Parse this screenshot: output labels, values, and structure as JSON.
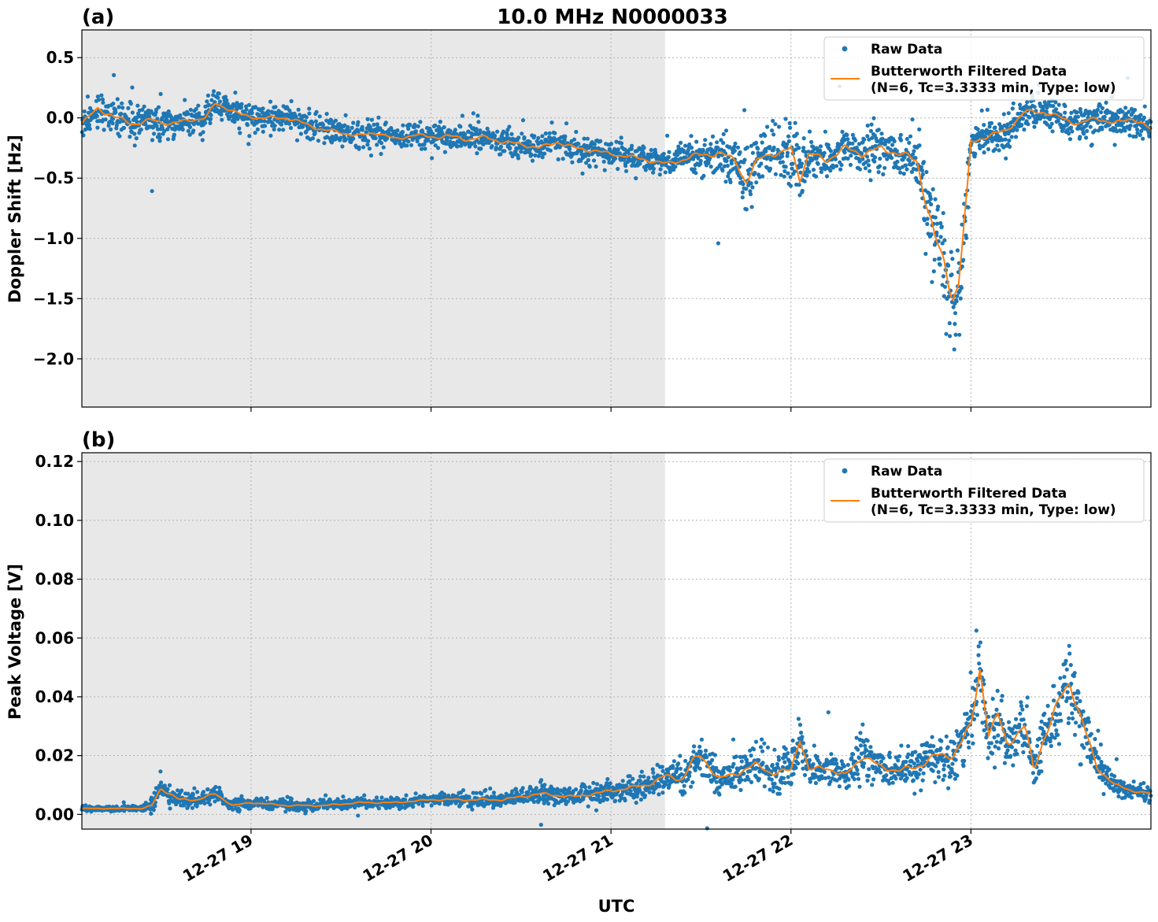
{
  "figure": {
    "title": "10.0 MHz N0000033",
    "xlabel": "UTC"
  },
  "colors": {
    "raw": "#1f77b4",
    "filtered": "#ff7f0e",
    "night_shade": "#e8e8e8",
    "grid": "#b0b0b0"
  },
  "chart_data": [
    {
      "type": "scatter",
      "panel_label": "(a)",
      "ylabel": "Doppler Shift [Hz]",
      "x_range_hours": [
        18.06,
        24.0
      ],
      "ylim": [
        -2.4,
        0.73
      ],
      "yticks": [
        0.5,
        0.0,
        -0.5,
        -1.0,
        -1.5,
        -2.0
      ],
      "ytick_labels": [
        "0.5",
        "0.0",
        "−0.5",
        "−1.0",
        "−1.5",
        "−2.0"
      ],
      "xticks_hours": [
        19,
        20,
        21,
        22,
        23
      ],
      "xtick_labels": [
        "12-27 19",
        "12-27 20",
        "12-27 21",
        "12-27 22",
        "12-27 23"
      ],
      "shaded_region_hours": [
        18.06,
        21.3
      ],
      "grid": true,
      "legend_position": "top-right",
      "legend": [
        "Raw Data",
        "Butterworth Filtered Data",
        "(N=6, Tc=3.3333 min, Type: low)"
      ],
      "series": [
        {
          "name": "Butterworth Filtered Data",
          "kind": "line",
          "x_hours": [
            18.06,
            18.15,
            18.25,
            18.35,
            18.45,
            18.55,
            18.65,
            18.75,
            18.8,
            18.87,
            18.95,
            19.05,
            19.2,
            19.3,
            19.4,
            19.5,
            19.6,
            19.7,
            19.8,
            19.9,
            20.0,
            20.1,
            20.2,
            20.3,
            20.4,
            20.5,
            20.6,
            20.7,
            20.8,
            20.9,
            21.0,
            21.1,
            21.2,
            21.3,
            21.4,
            21.5,
            21.6,
            21.7,
            21.75,
            21.8,
            21.85,
            21.9,
            21.95,
            22.0,
            22.05,
            22.1,
            22.2,
            22.3,
            22.4,
            22.5,
            22.6,
            22.7,
            22.75,
            22.8,
            22.85,
            22.9,
            22.93,
            22.98,
            23.0,
            23.1,
            23.2,
            23.3,
            23.4,
            23.5,
            23.6,
            23.7,
            23.8,
            23.9,
            24.0
          ],
          "y": [
            -0.05,
            0.08,
            0.0,
            -0.05,
            -0.02,
            -0.05,
            -0.02,
            0.0,
            0.12,
            0.08,
            0.02,
            0.0,
            0.0,
            -0.05,
            -0.1,
            -0.12,
            -0.15,
            -0.12,
            -0.18,
            -0.14,
            -0.16,
            -0.15,
            -0.18,
            -0.16,
            -0.2,
            -0.22,
            -0.25,
            -0.2,
            -0.25,
            -0.27,
            -0.3,
            -0.32,
            -0.35,
            -0.38,
            -0.35,
            -0.3,
            -0.3,
            -0.35,
            -0.55,
            -0.4,
            -0.3,
            -0.3,
            -0.3,
            -0.25,
            -0.5,
            -0.3,
            -0.35,
            -0.25,
            -0.3,
            -0.25,
            -0.3,
            -0.35,
            -0.7,
            -1.0,
            -1.2,
            -1.48,
            -1.4,
            -0.6,
            -0.2,
            -0.15,
            -0.1,
            0.05,
            0.05,
            0.0,
            -0.05,
            0.0,
            -0.05,
            0.0,
            -0.1
          ]
        },
        {
          "name": "Raw Data",
          "kind": "scatter",
          "spread": [
            0.15,
            0.15,
            0.15,
            0.15,
            0.15,
            0.12,
            0.12,
            0.12,
            0.12,
            0.12,
            0.12,
            0.12,
            0.12,
            0.12,
            0.12,
            0.12,
            0.12,
            0.12,
            0.12,
            0.12,
            0.12,
            0.12,
            0.12,
            0.12,
            0.12,
            0.12,
            0.12,
            0.12,
            0.12,
            0.12,
            0.12,
            0.12,
            0.12,
            0.12,
            0.12,
            0.2,
            0.2,
            0.3,
            0.35,
            0.3,
            0.2,
            0.2,
            0.2,
            0.3,
            0.25,
            0.2,
            0.2,
            0.2,
            0.2,
            0.2,
            0.2,
            0.3,
            0.35,
            0.4,
            0.45,
            0.5,
            0.4,
            0.3,
            0.15,
            0.15,
            0.15,
            0.15,
            0.15,
            0.15,
            0.15,
            0.15,
            0.15,
            0.15,
            0.15
          ]
        }
      ]
    },
    {
      "type": "scatter",
      "panel_label": "(b)",
      "ylabel": "Peak Voltage [V]",
      "x_range_hours": [
        18.06,
        24.0
      ],
      "ylim": [
        -0.005,
        0.123
      ],
      "yticks": [
        0.0,
        0.02,
        0.04,
        0.06,
        0.08,
        0.1,
        0.12
      ],
      "ytick_labels": [
        "0.00",
        "0.02",
        "0.04",
        "0.06",
        "0.08",
        "0.10",
        "0.12"
      ],
      "xticks_hours": [
        19,
        20,
        21,
        22,
        23
      ],
      "xtick_labels": [
        "12-27 19",
        "12-27 20",
        "12-27 21",
        "12-27 22",
        "12-27 23"
      ],
      "shaded_region_hours": [
        18.06,
        21.3
      ],
      "grid": true,
      "legend_position": "top-right",
      "legend": [
        "Raw Data",
        "Butterworth Filtered Data",
        "(N=6, Tc=3.3333 min, Type: low)"
      ],
      "series": [
        {
          "name": "Butterworth Filtered Data",
          "kind": "line",
          "x_hours": [
            18.06,
            18.2,
            18.3,
            18.4,
            18.45,
            18.5,
            18.6,
            18.7,
            18.8,
            18.9,
            19.0,
            19.2,
            19.4,
            19.6,
            19.8,
            20.0,
            20.2,
            20.4,
            20.6,
            20.8,
            21.0,
            21.2,
            21.3,
            21.4,
            21.45,
            21.5,
            21.6,
            21.7,
            21.8,
            21.9,
            22.0,
            22.05,
            22.1,
            22.2,
            22.3,
            22.4,
            22.5,
            22.6,
            22.7,
            22.8,
            22.9,
            23.0,
            23.05,
            23.1,
            23.15,
            23.2,
            23.3,
            23.35,
            23.4,
            23.5,
            23.55,
            23.6,
            23.7,
            23.8,
            23.9,
            24.0
          ],
          "y": [
            0.002,
            0.002,
            0.002,
            0.002,
            0.003,
            0.009,
            0.005,
            0.005,
            0.007,
            0.003,
            0.004,
            0.003,
            0.003,
            0.004,
            0.004,
            0.005,
            0.005,
            0.005,
            0.007,
            0.006,
            0.008,
            0.01,
            0.013,
            0.012,
            0.018,
            0.02,
            0.012,
            0.014,
            0.017,
            0.014,
            0.015,
            0.026,
            0.015,
            0.016,
            0.013,
            0.02,
            0.016,
            0.015,
            0.016,
            0.02,
            0.02,
            0.03,
            0.05,
            0.027,
            0.034,
            0.024,
            0.03,
            0.015,
            0.025,
            0.04,
            0.045,
            0.035,
            0.016,
            0.01,
            0.008,
            0.007
          ]
        },
        {
          "name": "Raw Data",
          "kind": "scatter",
          "spread": [
            0.001,
            0.001,
            0.001,
            0.001,
            0.003,
            0.005,
            0.003,
            0.003,
            0.003,
            0.002,
            0.002,
            0.002,
            0.002,
            0.002,
            0.002,
            0.002,
            0.003,
            0.003,
            0.004,
            0.003,
            0.004,
            0.005,
            0.006,
            0.007,
            0.008,
            0.008,
            0.007,
            0.007,
            0.007,
            0.007,
            0.007,
            0.009,
            0.007,
            0.007,
            0.007,
            0.008,
            0.007,
            0.007,
            0.007,
            0.008,
            0.009,
            0.012,
            0.015,
            0.01,
            0.01,
            0.01,
            0.01,
            0.008,
            0.01,
            0.015,
            0.016,
            0.012,
            0.007,
            0.004,
            0.003,
            0.003
          ]
        }
      ]
    }
  ]
}
